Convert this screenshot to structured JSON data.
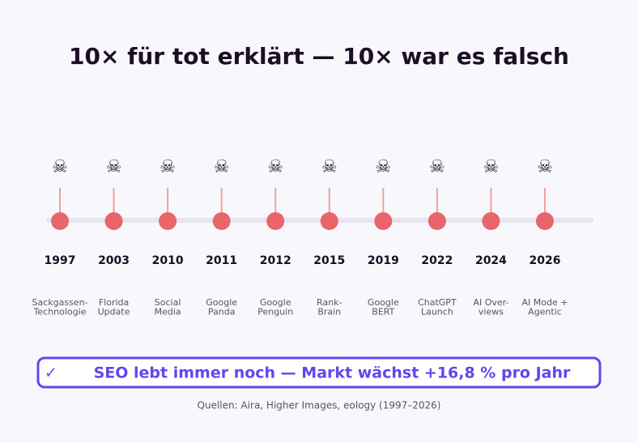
{
  "title": "10× für tot erklärt — 10× war es falsch",
  "icon": "☠",
  "events": [
    {
      "year": "1997",
      "label": [
        "Sackgassen-",
        "Technologie"
      ]
    },
    {
      "year": "2003",
      "label": [
        "Florida",
        "Update"
      ]
    },
    {
      "year": "2010",
      "label": [
        "Social",
        "Media"
      ]
    },
    {
      "year": "2011",
      "label": [
        "Google",
        "Panda"
      ]
    },
    {
      "year": "2012",
      "label": [
        "Google",
        "Penguin"
      ]
    },
    {
      "year": "2015",
      "label": [
        "Rank-",
        "Brain"
      ]
    },
    {
      "year": "2019",
      "label": [
        "Google",
        "BERT"
      ]
    },
    {
      "year": "2022",
      "label": [
        "ChatGPT",
        "Launch"
      ]
    },
    {
      "year": "2024",
      "label": [
        "AI Over-",
        "views"
      ]
    },
    {
      "year": "2026",
      "label": [
        "AI Mode +",
        "Agentic"
      ]
    }
  ],
  "callout": {
    "icon": "✓",
    "text": "SEO lebt immer noch — Markt wächst +16,8 % pro Jahr"
  },
  "source": "Quellen: Aira, Higher Images, eology (1997–2026)"
}
